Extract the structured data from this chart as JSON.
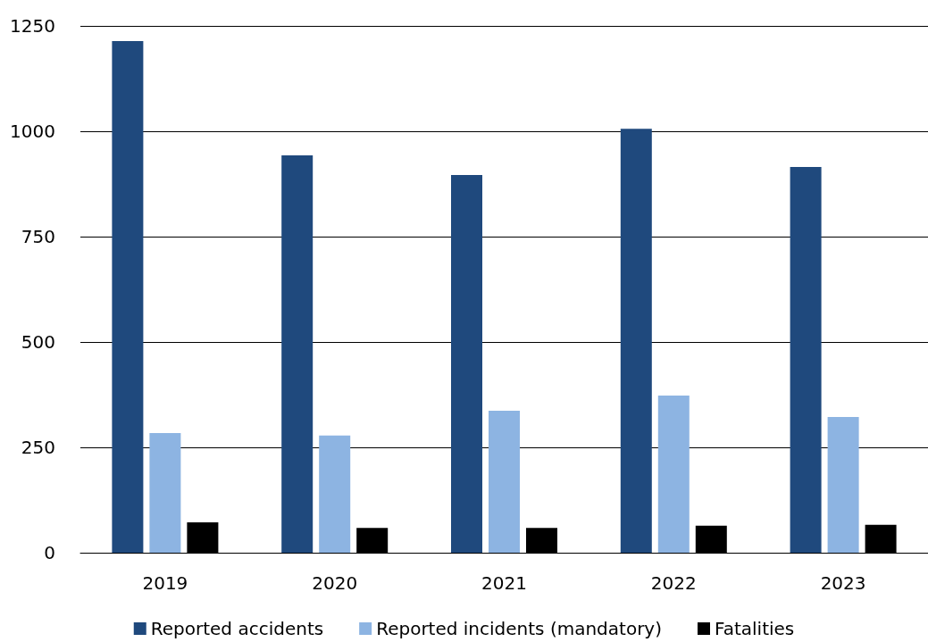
{
  "chart_data": {
    "type": "bar",
    "categories": [
      "2019",
      "2020",
      "2021",
      "2022",
      "2023"
    ],
    "series": [
      {
        "name": "Reported accidents",
        "color": "#1f497d",
        "values": [
          1214,
          943,
          896,
          1006,
          915
        ]
      },
      {
        "name": "Reported incidents (mandatory)",
        "color": "#8db4e2",
        "values": [
          284,
          278,
          337,
          373,
          322
        ]
      },
      {
        "name": "Fatalities",
        "color": "#000000",
        "values": [
          72,
          59,
          59,
          64,
          66
        ]
      }
    ],
    "ylim": [
      0,
      1250
    ],
    "yticks": [
      0,
      250,
      500,
      750,
      1000,
      1250
    ],
    "grid": "y",
    "legend": "bottom"
  }
}
